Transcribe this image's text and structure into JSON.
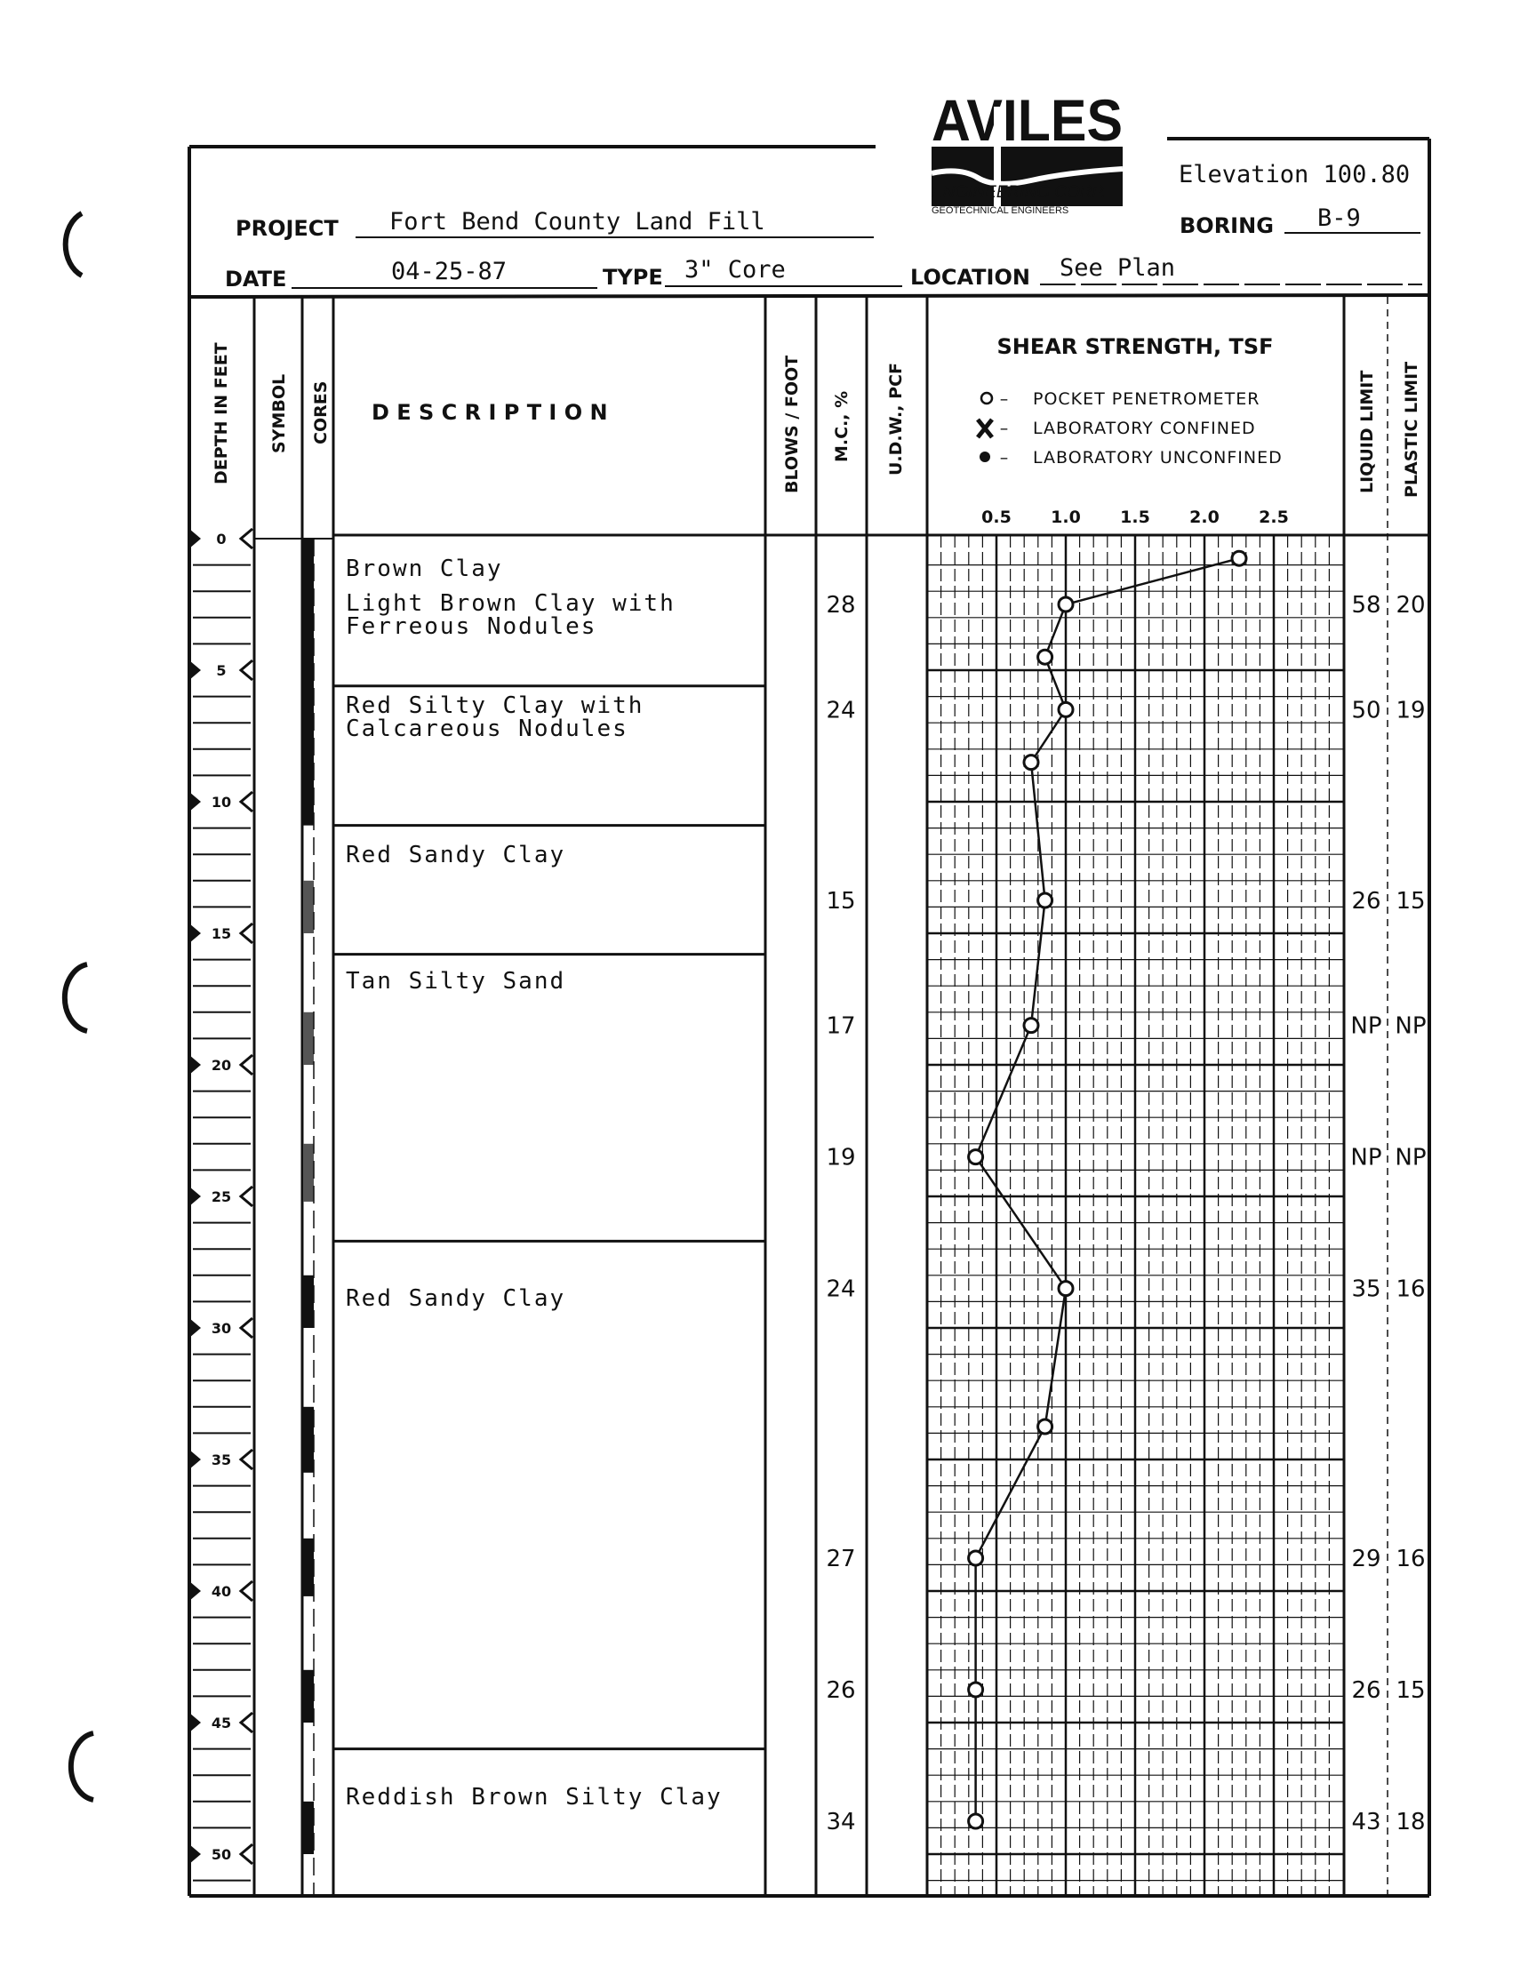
{
  "logo": {
    "name": "AVILES",
    "line1": "ENGINEERING CORP.",
    "line2": "GEOTECHNICAL ENGINEERS"
  },
  "header": {
    "project_label": "PROJECT",
    "project": "Fort Bend County Land Fill",
    "date_label": "DATE",
    "date": "04-25-87",
    "type_label": "TYPE",
    "type": "3\" Core",
    "location_label": "LOCATION",
    "location": "See Plan",
    "elevation": "Elevation 100.80",
    "boring_label": "BORING",
    "boring": "B-9"
  },
  "columns": {
    "depth": "DEPTH IN FEET",
    "symbol": "SYMBOL",
    "cores": "CORES",
    "description": "D E S C R I P T I O N",
    "blows": "BLOWS / FOOT",
    "mc": "M.C., %",
    "udw": "U.D.W., PCF",
    "liquid_limit": "LIQUID LIMIT",
    "plastic_limit": "PLASTIC LIMIT"
  },
  "chart_data": {
    "type": "line",
    "title": "SHEAR STRENGTH, TSF",
    "legend": [
      {
        "symbol": "O",
        "label": "POCKET PENETROMETER"
      },
      {
        "symbol": "X",
        "label": "LABORATORY   CONFINED"
      },
      {
        "symbol": "●",
        "label": "LABORATORY UNCONFINED"
      }
    ],
    "x_ticks": [
      "0.5",
      "1.0",
      "1.5",
      "2.0",
      "2.5"
    ],
    "xlim": [
      0,
      3.0
    ],
    "ylim_depth_ft": [
      0,
      51.5
    ],
    "grid": true,
    "series": [
      {
        "marker": "open-circle",
        "points": [
          {
            "depth": 0.75,
            "tsf": 2.25
          },
          {
            "depth": 2.5,
            "tsf": 1.0
          },
          {
            "depth": 4.5,
            "tsf": 0.85
          },
          {
            "depth": 6.5,
            "tsf": 1.0
          },
          {
            "depth": 8.5,
            "tsf": 0.75
          },
          {
            "depth": 13.75,
            "tsf": 0.85
          },
          {
            "depth": 18.5,
            "tsf": 0.75
          },
          {
            "depth": 23.5,
            "tsf": 0.35
          },
          {
            "depth": 28.5,
            "tsf": 1.0
          },
          {
            "depth": 33.75,
            "tsf": 0.85
          },
          {
            "depth": 38.75,
            "tsf": 0.35
          },
          {
            "depth": 43.75,
            "tsf": 0.35
          },
          {
            "depth": 48.75,
            "tsf": 0.35
          }
        ]
      }
    ]
  },
  "depth_labels": [
    "0",
    "5",
    "10",
    "15",
    "20",
    "25",
    "30",
    "35",
    "40",
    "45",
    "50"
  ],
  "strata": [
    {
      "top": 0,
      "bottom": 5.6,
      "lines": [
        "Brown Clay"
      ]
    },
    {
      "top": 0,
      "bottom": 5.6,
      "lines": [
        "Light Brown Clay with",
        "Ferreous Nodules"
      ]
    },
    {
      "top": 5.6,
      "bottom": 10.9,
      "lines": [
        "Red Silty Clay with",
        "Calcareous Nodules"
      ]
    },
    {
      "top": 10.9,
      "bottom": 15.8,
      "lines": [
        "Red Sandy Clay"
      ]
    },
    {
      "top": 15.8,
      "bottom": 26.7,
      "lines": [
        "Tan Silty Sand"
      ]
    },
    {
      "top": 26.7,
      "bottom": 46.0,
      "lines": [
        "Red Sandy Clay"
      ]
    },
    {
      "top": 46.0,
      "bottom": 51.5,
      "lines": [
        "Reddish Brown Silty Clay"
      ]
    }
  ],
  "tests": [
    {
      "depth": 2.5,
      "mc": "28",
      "ll": "58",
      "pl": "20"
    },
    {
      "depth": 6.5,
      "mc": "24",
      "ll": "50",
      "pl": "19"
    },
    {
      "depth": 13.75,
      "mc": "15",
      "ll": "26",
      "pl": "15"
    },
    {
      "depth": 18.5,
      "mc": "17",
      "ll": "NP",
      "pl": "NP"
    },
    {
      "depth": 23.5,
      "mc": "19",
      "ll": "NP",
      "pl": "NP"
    },
    {
      "depth": 28.5,
      "mc": "24",
      "ll": "35",
      "pl": "16"
    },
    {
      "depth": 38.75,
      "mc": "27",
      "ll": "29",
      "pl": "16"
    },
    {
      "depth": 43.75,
      "mc": "26",
      "ll": "26",
      "pl": "15"
    },
    {
      "depth": 48.75,
      "mc": "34",
      "ll": "43",
      "pl": "18"
    }
  ],
  "cores": [
    {
      "top": 0,
      "bottom": 10.9,
      "fill": "solid"
    },
    {
      "top": 13.0,
      "bottom": 15.0,
      "fill": "mottled"
    },
    {
      "top": 18.0,
      "bottom": 20.0,
      "fill": "mottled"
    },
    {
      "top": 23.0,
      "bottom": 25.2,
      "fill": "mottled"
    },
    {
      "top": 28.0,
      "bottom": 30.0,
      "fill": "solid"
    },
    {
      "top": 33.0,
      "bottom": 35.5,
      "fill": "solid"
    },
    {
      "top": 38.0,
      "bottom": 40.2,
      "fill": "solid"
    },
    {
      "top": 43.0,
      "bottom": 45.0,
      "fill": "solid"
    },
    {
      "top": 48.0,
      "bottom": 50.0,
      "fill": "solid"
    }
  ]
}
